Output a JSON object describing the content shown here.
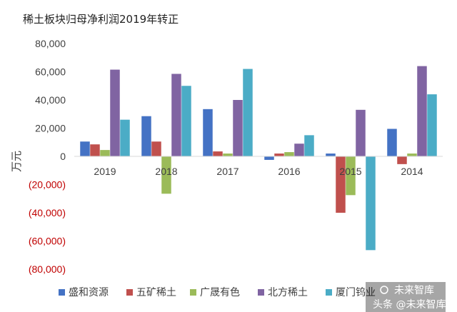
{
  "chart_data": {
    "type": "bar",
    "title": "稀土板块归母净利润2019年转正",
    "ylabel": "万元",
    "xlabel": "",
    "ylim": [
      -80000,
      80000
    ],
    "ytick_step": 20000,
    "ytick_labels": [
      "80,000",
      "60,000",
      "40,000",
      "20,000",
      "0",
      "(20,000)",
      "(40,000)",
      "(60,000)",
      "(80,000)"
    ],
    "grid": false,
    "legend_position": "bottom",
    "categories": [
      "2019",
      "2018",
      "2017",
      "2016",
      "2015",
      "2014"
    ],
    "series": [
      {
        "name": "盛和资源",
        "color": "#4472C4",
        "values": [
          10500,
          28500,
          33500,
          -2500,
          2000,
          19500
        ]
      },
      {
        "name": "五矿稀土",
        "color": "#C0504D",
        "values": [
          8500,
          10500,
          3500,
          2000,
          -40000,
          -5500
        ]
      },
      {
        "name": "广晟有色",
        "color": "#9BBB59",
        "values": [
          4500,
          -26500,
          2000,
          3000,
          -27500,
          2000
        ]
      },
      {
        "name": "北方稀土",
        "color": "#8064A2",
        "values": [
          61500,
          58500,
          40000,
          9000,
          33000,
          64000
        ]
      },
      {
        "name": "厦门钨业",
        "color": "#4BACC6",
        "values": [
          26000,
          50000,
          62000,
          15000,
          -66500,
          44000
        ]
      }
    ],
    "negative_label_color": "#C00000",
    "positive_label_color": "#404040"
  },
  "watermark": {
    "line1": "未来智库",
    "line2": "头条 @未来智库"
  }
}
